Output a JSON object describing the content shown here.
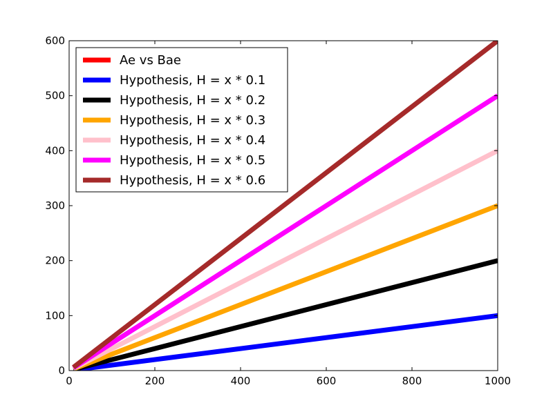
{
  "chart_data": {
    "type": "line",
    "title": "",
    "xlabel": "",
    "ylabel": "",
    "xlim": [
      0,
      1000
    ],
    "ylim": [
      0,
      600
    ],
    "xticks": [
      0,
      200,
      400,
      600,
      800,
      1000
    ],
    "yticks": [
      0,
      100,
      200,
      300,
      400,
      500,
      600
    ],
    "legend_position": "top-left",
    "grid": false,
    "series": [
      {
        "name": "Ae vs Bae",
        "color": "#ff0000",
        "x": [],
        "y": []
      },
      {
        "name": "Hypothesis, H = x * 0.1",
        "color": "#0000ff",
        "x": [
          10,
          1000
        ],
        "y": [
          1,
          100
        ]
      },
      {
        "name": "Hypothesis, H = x * 0.2",
        "color": "#000000",
        "x": [
          10,
          1000
        ],
        "y": [
          2,
          200
        ]
      },
      {
        "name": "Hypothesis, H = x * 0.3",
        "color": "#ffa500",
        "x": [
          10,
          1000
        ],
        "y": [
          3,
          300
        ]
      },
      {
        "name": "Hypothesis, H = x * 0.4",
        "color": "#ffc0cb",
        "x": [
          10,
          1000
        ],
        "y": [
          4,
          400
        ]
      },
      {
        "name": "Hypothesis, H = x * 0.5",
        "color": "#ff00ff",
        "x": [
          10,
          1000
        ],
        "y": [
          5,
          500
        ]
      },
      {
        "name": "Hypothesis, H = x * 0.6",
        "color": "#a52a2a",
        "x": [
          10,
          1000
        ],
        "y": [
          6,
          600
        ]
      }
    ]
  }
}
